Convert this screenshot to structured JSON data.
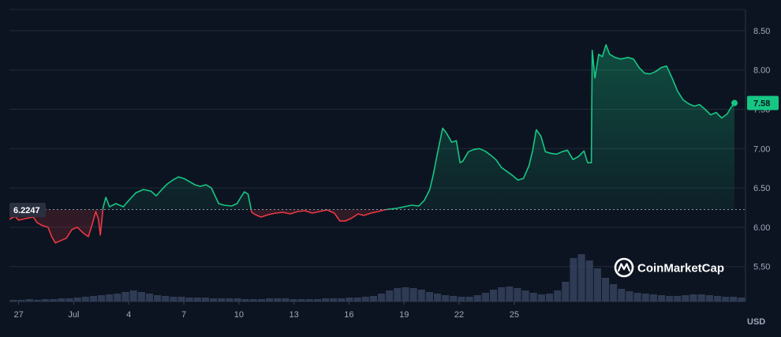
{
  "chart_data": {
    "type": "line",
    "x_axis": {
      "tick_labels": [
        "27",
        "Jul",
        "4",
        "7",
        "10",
        "13",
        "16",
        "19",
        "22",
        "25"
      ]
    },
    "y_axis": {
      "position": "right",
      "tick_labels": [
        "5.50",
        "6.00",
        "6.50",
        "7.00",
        "7.50",
        "8.00",
        "8.50"
      ],
      "ylim": [
        5.0,
        8.7
      ]
    },
    "unit": "USD",
    "reference_line": {
      "value": 6.2247,
      "label": "6.2247"
    },
    "current_price": {
      "value": 7.58,
      "label": "7.58"
    },
    "grid": "horizontal",
    "colors": {
      "up": "#16c784",
      "down": "#ea3943",
      "background": "#0d1421",
      "grid": "#222a38",
      "volume": "#3b4866"
    },
    "series": [
      {
        "points": [
          [
            26.5,
            6.1
          ],
          [
            26.8,
            6.14
          ],
          [
            27.0,
            6.09
          ],
          [
            27.4,
            6.11
          ],
          [
            27.8,
            6.13
          ],
          [
            28.0,
            6.06
          ],
          [
            28.3,
            6.02
          ],
          [
            28.6,
            6.0
          ],
          [
            28.8,
            5.88
          ],
          [
            29.0,
            5.8
          ],
          [
            29.3,
            5.83
          ],
          [
            29.6,
            5.86
          ],
          [
            29.9,
            5.97
          ],
          [
            30.2,
            6.0
          ],
          [
            30.5,
            5.93
          ],
          [
            30.8,
            5.88
          ],
          [
            31.0,
            6.03
          ],
          [
            31.2,
            6.2
          ],
          [
            31.35,
            6.1
          ],
          [
            31.45,
            5.9
          ],
          [
            31.6,
            6.25
          ],
          [
            31.75,
            6.38
          ],
          [
            31.95,
            6.26
          ],
          [
            32.3,
            6.3
          ],
          [
            32.7,
            6.26
          ],
          [
            33.0,
            6.34
          ],
          [
            33.4,
            6.44
          ],
          [
            33.8,
            6.48
          ],
          [
            34.2,
            6.46
          ],
          [
            34.5,
            6.4
          ],
          [
            34.8,
            6.48
          ],
          [
            35.1,
            6.55
          ],
          [
            35.4,
            6.6
          ],
          [
            35.7,
            6.64
          ],
          [
            36.0,
            6.62
          ],
          [
            36.3,
            6.58
          ],
          [
            36.6,
            6.54
          ],
          [
            36.9,
            6.52
          ],
          [
            37.2,
            6.54
          ],
          [
            37.5,
            6.5
          ],
          [
            37.7,
            6.4
          ],
          [
            37.9,
            6.3
          ],
          [
            38.2,
            6.28
          ],
          [
            38.6,
            6.27
          ],
          [
            38.9,
            6.3
          ],
          [
            39.1,
            6.38
          ],
          [
            39.3,
            6.45
          ],
          [
            39.5,
            6.42
          ],
          [
            39.7,
            6.19
          ],
          [
            39.9,
            6.16
          ],
          [
            40.2,
            6.13
          ],
          [
            40.6,
            6.16
          ],
          [
            41.0,
            6.18
          ],
          [
            41.4,
            6.19
          ],
          [
            41.8,
            6.17
          ],
          [
            42.2,
            6.2
          ],
          [
            42.6,
            6.21
          ],
          [
            43.0,
            6.18
          ],
          [
            43.4,
            6.2
          ],
          [
            43.8,
            6.22
          ],
          [
            44.2,
            6.18
          ],
          [
            44.5,
            6.08
          ],
          [
            44.8,
            6.08
          ],
          [
            45.1,
            6.11
          ],
          [
            45.5,
            6.17
          ],
          [
            45.8,
            6.15
          ],
          [
            46.2,
            6.18
          ],
          [
            46.6,
            6.2
          ],
          [
            46.9,
            6.22
          ],
          [
            47.2,
            6.23
          ],
          [
            47.6,
            6.24
          ],
          [
            48.0,
            6.26
          ],
          [
            48.4,
            6.28
          ],
          [
            48.8,
            6.27
          ],
          [
            49.1,
            6.34
          ],
          [
            49.4,
            6.48
          ],
          [
            49.6,
            6.68
          ],
          [
            49.8,
            6.92
          ],
          [
            49.95,
            7.09
          ],
          [
            50.1,
            7.26
          ],
          [
            50.3,
            7.2
          ],
          [
            50.6,
            7.08
          ],
          [
            50.85,
            7.1
          ],
          [
            51.05,
            6.82
          ],
          [
            51.2,
            6.84
          ],
          [
            51.5,
            6.96
          ],
          [
            51.8,
            6.99
          ],
          [
            52.1,
            7.0
          ],
          [
            52.4,
            6.97
          ],
          [
            52.7,
            6.92
          ],
          [
            53.0,
            6.86
          ],
          [
            53.3,
            6.76
          ],
          [
            53.6,
            6.71
          ],
          [
            53.9,
            6.66
          ],
          [
            54.2,
            6.6
          ],
          [
            54.5,
            6.62
          ],
          [
            54.8,
            6.78
          ],
          [
            55.0,
            6.97
          ],
          [
            55.2,
            7.24
          ],
          [
            55.45,
            7.16
          ],
          [
            55.7,
            6.96
          ],
          [
            56.0,
            6.94
          ],
          [
            56.3,
            6.93
          ],
          [
            56.6,
            6.96
          ],
          [
            56.9,
            6.98
          ],
          [
            57.2,
            6.86
          ],
          [
            57.5,
            6.9
          ],
          [
            57.8,
            6.97
          ],
          [
            58.0,
            6.82
          ],
          [
            58.2,
            6.82
          ],
          [
            58.25,
            8.25
          ],
          [
            58.4,
            7.9
          ],
          [
            58.6,
            8.2
          ],
          [
            58.8,
            8.17
          ],
          [
            59.0,
            8.32
          ],
          [
            59.2,
            8.2
          ],
          [
            59.5,
            8.16
          ],
          [
            59.8,
            8.14
          ],
          [
            60.2,
            8.16
          ],
          [
            60.5,
            8.14
          ],
          [
            60.8,
            8.03
          ],
          [
            61.1,
            7.96
          ],
          [
            61.4,
            7.95
          ],
          [
            61.7,
            7.98
          ],
          [
            62.0,
            8.03
          ],
          [
            62.3,
            8.05
          ],
          [
            62.6,
            7.9
          ],
          [
            62.9,
            7.73
          ],
          [
            63.2,
            7.62
          ],
          [
            63.5,
            7.57
          ],
          [
            63.8,
            7.54
          ],
          [
            64.1,
            7.56
          ],
          [
            64.4,
            7.5
          ],
          [
            64.7,
            7.43
          ],
          [
            65.0,
            7.46
          ],
          [
            65.3,
            7.39
          ],
          [
            65.6,
            7.44
          ],
          [
            65.8,
            7.52
          ],
          [
            66.0,
            7.58
          ]
        ]
      }
    ],
    "volume": [
      0.02,
      0.02,
      0.03,
      0.02,
      0.03,
      0.03,
      0.04,
      0.04,
      0.05,
      0.06,
      0.07,
      0.08,
      0.09,
      0.1,
      0.12,
      0.14,
      0.12,
      0.1,
      0.08,
      0.07,
      0.06,
      0.06,
      0.05,
      0.05,
      0.05,
      0.04,
      0.04,
      0.04,
      0.04,
      0.03,
      0.03,
      0.03,
      0.04,
      0.04,
      0.04,
      0.03,
      0.03,
      0.03,
      0.03,
      0.04,
      0.04,
      0.04,
      0.05,
      0.05,
      0.06,
      0.07,
      0.1,
      0.14,
      0.17,
      0.18,
      0.17,
      0.15,
      0.12,
      0.1,
      0.08,
      0.07,
      0.06,
      0.06,
      0.08,
      0.11,
      0.15,
      0.18,
      0.19,
      0.17,
      0.14,
      0.11,
      0.09,
      0.1,
      0.14,
      0.25,
      0.55,
      0.6,
      0.52,
      0.42,
      0.3,
      0.22,
      0.16,
      0.13,
      0.11,
      0.1,
      0.09,
      0.08,
      0.07,
      0.07,
      0.08,
      0.09,
      0.09,
      0.08,
      0.07,
      0.06,
      0.06,
      0.05
    ]
  },
  "watermark": {
    "text": "CoinMarketCap"
  }
}
